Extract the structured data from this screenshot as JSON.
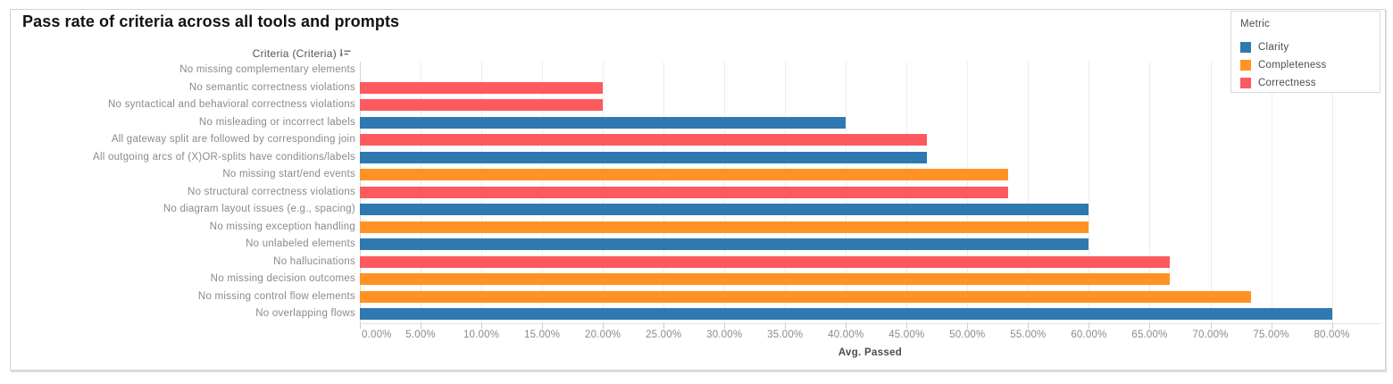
{
  "title": "Pass rate of criteria across all tools and prompts",
  "column_header": {
    "label": "Criteria (Criteria)",
    "sort_icon": "sort-descending-icon"
  },
  "legend": {
    "title": "Metric",
    "position": "top-right",
    "items": [
      {
        "label": "Clarity",
        "color": "#2E79B0"
      },
      {
        "label": "Completeness",
        "color": "#FF9224"
      },
      {
        "label": "Correctness",
        "color": "#FC5A5F"
      }
    ]
  },
  "chart_data": {
    "type": "bar",
    "orientation": "horizontal",
    "title": "Pass rate of criteria across all tools and prompts",
    "xlabel": "Avg. Passed",
    "ylabel": "Criteria (Criteria)",
    "xlim": [
      0,
      84
    ],
    "tick_step": 5,
    "x_tick_labels": [
      "0.00%",
      "5.00%",
      "10.00%",
      "15.00%",
      "20.00%",
      "25.00%",
      "30.00%",
      "35.00%",
      "40.00%",
      "45.00%",
      "50.00%",
      "55.00%",
      "60.00%",
      "65.00%",
      "70.00%",
      "75.00%",
      "80.00%"
    ],
    "grid": "vertical",
    "series_field": "Metric",
    "rows": [
      {
        "label": "No missing complementary elements",
        "metric": "",
        "value_pct": 0
      },
      {
        "label": "No semantic correctness violations",
        "metric": "Correctness",
        "value_pct": 20
      },
      {
        "label": "No syntactical and behavioral correctness violations",
        "metric": "Correctness",
        "value_pct": 20
      },
      {
        "label": "No misleading or incorrect labels",
        "metric": "Clarity",
        "value_pct": 40
      },
      {
        "label": "All gateway split are followed by corresponding join",
        "metric": "Correctness",
        "value_pct": 46.67
      },
      {
        "label": "All outgoing arcs of (X)OR-splits have conditions/labels",
        "metric": "Clarity",
        "value_pct": 46.67
      },
      {
        "label": "No missing start/end events",
        "metric": "Completeness",
        "value_pct": 53.33
      },
      {
        "label": "No structural correctness violations",
        "metric": "Correctness",
        "value_pct": 53.33
      },
      {
        "label": "No diagram layout issues (e.g., spacing)",
        "metric": "Clarity",
        "value_pct": 60
      },
      {
        "label": "No missing exception handling",
        "metric": "Completeness",
        "value_pct": 60
      },
      {
        "label": "No unlabeled elements",
        "metric": "Clarity",
        "value_pct": 60
      },
      {
        "label": "No hallucinations",
        "metric": "Correctness",
        "value_pct": 66.67
      },
      {
        "label": "No missing decision outcomes",
        "metric": "Completeness",
        "value_pct": 66.67
      },
      {
        "label": "No missing control flow elements",
        "metric": "Completeness",
        "value_pct": 73.33
      },
      {
        "label": "No overlapping flows",
        "metric": "Clarity",
        "value_pct": 80
      }
    ]
  }
}
